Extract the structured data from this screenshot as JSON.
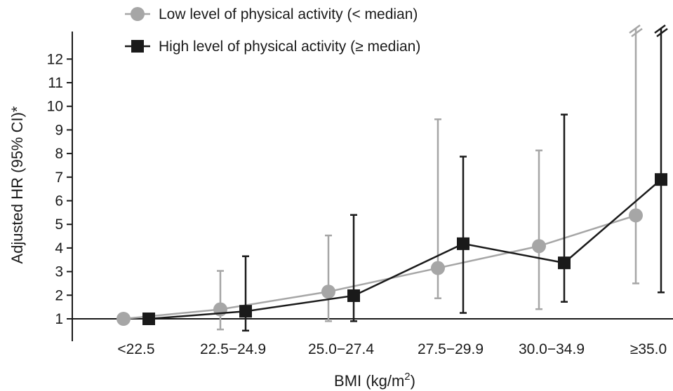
{
  "chart_data": {
    "type": "line",
    "xlabel": "BMI (kg/m²)",
    "ylabel": "Adjusted HR (95% CI)*",
    "ylim": [
      0,
      13
    ],
    "yticks": [
      1,
      2,
      3,
      4,
      5,
      6,
      7,
      8,
      9,
      10,
      11,
      12
    ],
    "reference_line": 1,
    "grid": false,
    "legend": "top-left",
    "categories": [
      "<22.5",
      "22.5−24.9",
      "25.0−27.4",
      "27.5−29.9",
      "30.0−34.9",
      "≥35.0"
    ],
    "series": [
      {
        "name": "Low level of physical activity (< median)",
        "color": "#a6a6a6",
        "marker": "circle",
        "values": [
          1.0,
          1.4,
          2.15,
          3.15,
          4.08,
          5.38
        ],
        "ci_low": [
          1.0,
          0.55,
          0.9,
          1.87,
          1.41,
          2.5
        ],
        "ci_high": [
          1.0,
          3.03,
          4.53,
          9.45,
          8.13,
          13.0
        ],
        "ci_truncated": [
          false,
          false,
          false,
          false,
          false,
          true
        ]
      },
      {
        "name": "High level of physical activity (≥ median)",
        "color": "#1a1a1a",
        "marker": "square",
        "values": [
          1.0,
          1.32,
          1.98,
          4.18,
          3.37,
          6.9
        ],
        "ci_low": [
          1.0,
          0.5,
          0.9,
          1.25,
          1.72,
          2.12
        ],
        "ci_high": [
          1.0,
          3.65,
          5.4,
          7.87,
          9.65,
          13.0
        ],
        "ci_truncated": [
          false,
          false,
          false,
          false,
          false,
          true
        ]
      }
    ]
  }
}
